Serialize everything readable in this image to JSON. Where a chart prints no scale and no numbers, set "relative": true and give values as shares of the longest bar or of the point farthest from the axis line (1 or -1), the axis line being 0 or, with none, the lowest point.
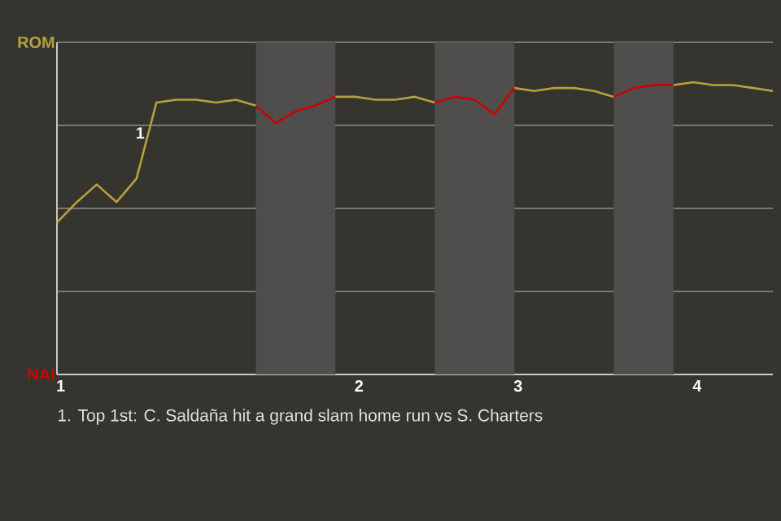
{
  "chart_data": {
    "type": "line",
    "relative": true,
    "categories": [
      "1",
      null,
      null,
      null,
      null,
      null,
      null,
      null,
      null,
      null,
      null,
      null,
      null,
      null,
      null,
      "2",
      null,
      null,
      null,
      null,
      null,
      null,
      null,
      "3",
      null,
      null,
      null,
      null,
      null,
      null,
      null,
      null,
      "4",
      null,
      null,
      null,
      null
    ],
    "series": [
      {
        "name": "ROM",
        "color": "#b5a23e",
        "values": [
          0.52,
          0.59,
          0.65,
          0.59,
          0.67,
          0.93,
          0.94,
          0.94,
          0.93,
          0.94,
          0.92,
          null,
          null,
          null,
          0.95,
          0.95,
          0.94,
          0.94,
          0.95,
          0.93,
          null,
          null,
          null,
          0.98,
          0.97,
          0.98,
          0.98,
          0.97,
          0.95,
          null,
          null,
          0.99,
          1,
          0.99,
          0.99,
          0.98,
          0.97
        ]
      },
      {
        "name": "NAI",
        "color": "#cc0000",
        "values": [
          null,
          null,
          null,
          null,
          null,
          null,
          null,
          null,
          null,
          null,
          0.92,
          0.86,
          0.9,
          0.92,
          0.95,
          null,
          null,
          null,
          null,
          0.93,
          0.95,
          0.94,
          0.89,
          0.98,
          null,
          null,
          null,
          null,
          0.95,
          0.98,
          0.99,
          0.99,
          null,
          null,
          null,
          null,
          null
        ]
      }
    ],
    "grid": "y",
    "annotations": [
      "1",
      "1. Top 1st: C. Saldaña hit a grand slam home run vs S. Charters"
    ]
  }
}
